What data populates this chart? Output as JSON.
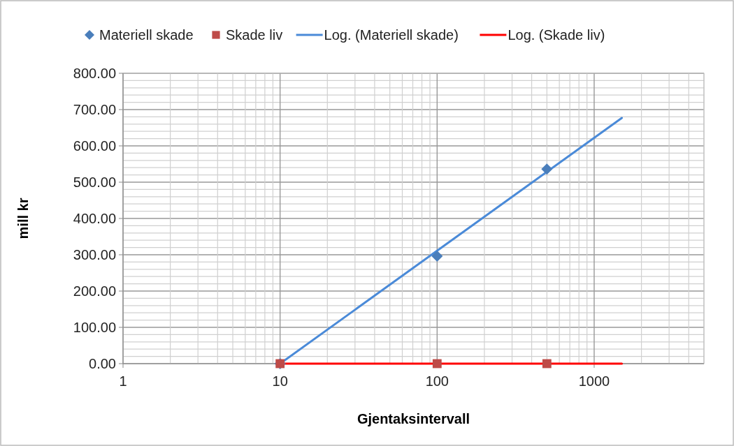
{
  "chart_data": {
    "type": "scatter",
    "xlabel": "Gjentaksintervall",
    "ylabel": "mill kr",
    "log": "x",
    "grid": true,
    "legend": "top",
    "xlim": [
      1,
      5000
    ],
    "ylim": [
      0,
      800
    ],
    "xticks": [
      {
        "value": 1,
        "label": "1"
      },
      {
        "value": 2,
        "label": null
      },
      {
        "value": 3,
        "label": null
      },
      {
        "value": 4,
        "label": null
      },
      {
        "value": 5,
        "label": null
      },
      {
        "value": 6,
        "label": null
      },
      {
        "value": 7,
        "label": null
      },
      {
        "value": 8,
        "label": null
      },
      {
        "value": 9,
        "label": null
      },
      {
        "value": 10,
        "label": "10"
      },
      {
        "value": 20,
        "label": null
      },
      {
        "value": 30,
        "label": null
      },
      {
        "value": 40,
        "label": null
      },
      {
        "value": 50,
        "label": null
      },
      {
        "value": 60,
        "label": null
      },
      {
        "value": 70,
        "label": null
      },
      {
        "value": 80,
        "label": null
      },
      {
        "value": 90,
        "label": null
      },
      {
        "value": 100,
        "label": "100"
      },
      {
        "value": 200,
        "label": null
      },
      {
        "value": 300,
        "label": null
      },
      {
        "value": 400,
        "label": null
      },
      {
        "value": 500,
        "label": null
      },
      {
        "value": 600,
        "label": null
      },
      {
        "value": 700,
        "label": null
      },
      {
        "value": 800,
        "label": null
      },
      {
        "value": 900,
        "label": null
      },
      {
        "value": 1000,
        "label": "1000"
      },
      {
        "value": 2000,
        "label": null
      },
      {
        "value": 3000,
        "label": null
      },
      {
        "value": 4000,
        "label": null
      },
      {
        "value": 5000,
        "label": null
      }
    ],
    "yticks": [
      {
        "value": 0,
        "label": "0.00"
      },
      {
        "value": 20,
        "label": null
      },
      {
        "value": 40,
        "label": null
      },
      {
        "value": 60,
        "label": null
      },
      {
        "value": 80,
        "label": null
      },
      {
        "value": 100,
        "label": "100.00"
      },
      {
        "value": 120,
        "label": null
      },
      {
        "value": 140,
        "label": null
      },
      {
        "value": 160,
        "label": null
      },
      {
        "value": 180,
        "label": null
      },
      {
        "value": 200,
        "label": "200.00"
      },
      {
        "value": 220,
        "label": null
      },
      {
        "value": 240,
        "label": null
      },
      {
        "value": 260,
        "label": null
      },
      {
        "value": 280,
        "label": null
      },
      {
        "value": 300,
        "label": "300.00"
      },
      {
        "value": 320,
        "label": null
      },
      {
        "value": 340,
        "label": null
      },
      {
        "value": 360,
        "label": null
      },
      {
        "value": 380,
        "label": null
      },
      {
        "value": 400,
        "label": "400.00"
      },
      {
        "value": 420,
        "label": null
      },
      {
        "value": 440,
        "label": null
      },
      {
        "value": 460,
        "label": null
      },
      {
        "value": 480,
        "label": null
      },
      {
        "value": 500,
        "label": "500.00"
      },
      {
        "value": 520,
        "label": null
      },
      {
        "value": 540,
        "label": null
      },
      {
        "value": 560,
        "label": null
      },
      {
        "value": 580,
        "label": null
      },
      {
        "value": 600,
        "label": "600.00"
      },
      {
        "value": 620,
        "label": null
      },
      {
        "value": 640,
        "label": null
      },
      {
        "value": 660,
        "label": null
      },
      {
        "value": 680,
        "label": null
      },
      {
        "value": 700,
        "label": "700.00"
      },
      {
        "value": 720,
        "label": null
      },
      {
        "value": 740,
        "label": null
      },
      {
        "value": 760,
        "label": null
      },
      {
        "value": 780,
        "label": null
      },
      {
        "value": 800,
        "label": "800.00"
      }
    ],
    "series": [
      {
        "name": "Materiell skade",
        "marker": "diamond",
        "color": "#4a7ebb",
        "x": [
          10,
          100,
          500
        ],
        "values": [
          0,
          296,
          536
        ]
      },
      {
        "name": "Skade liv",
        "marker": "square",
        "color": "#be4b48",
        "x": [
          10,
          100,
          500
        ],
        "values": [
          0,
          0,
          0
        ]
      },
      {
        "name": "Log. (Materiell skade)",
        "type": "line",
        "color": "#4a8ad8",
        "x": [
          10,
          1500
        ],
        "values": [
          0,
          677
        ]
      },
      {
        "name": "Log. (Skade liv)",
        "type": "line",
        "color": "#ff0000",
        "x": [
          10,
          1500
        ],
        "values": [
          0,
          0
        ]
      }
    ]
  }
}
